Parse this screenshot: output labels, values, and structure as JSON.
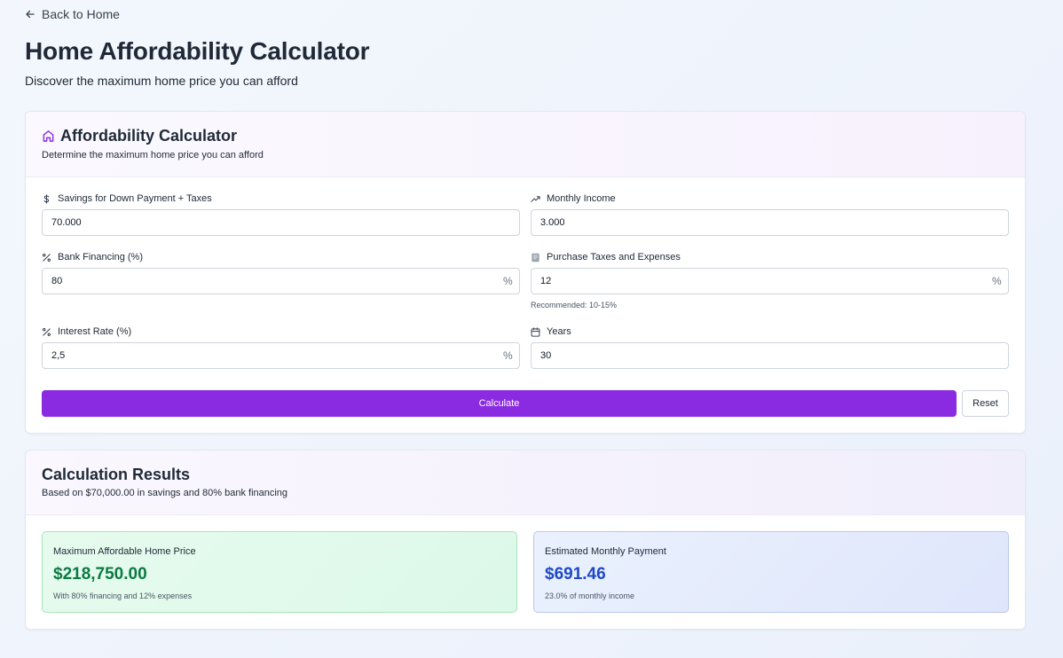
{
  "nav": {
    "back_label": "Back to Home"
  },
  "header": {
    "title": "Home Affordability Calculator",
    "subtitle": "Discover the maximum home price you can afford"
  },
  "calculator": {
    "title": "Affordability Calculator",
    "description": "Determine the maximum home price you can afford",
    "fields": {
      "savings": {
        "label": "Savings for Down Payment + Taxes",
        "value": "70.000",
        "icon": "dollar-icon"
      },
      "income": {
        "label": "Monthly Income",
        "value": "3.000",
        "icon": "trending-up-icon"
      },
      "financing": {
        "label": "Bank Financing (%)",
        "value": "80",
        "suffix": "%",
        "icon": "percent-icon"
      },
      "taxes": {
        "label": "Purchase Taxes and Expenses",
        "value": "12",
        "suffix": "%",
        "hint": "Recommended: 10-15%",
        "icon": "receipt-icon"
      },
      "interest": {
        "label": "Interest Rate (%)",
        "value": "2,5",
        "suffix": "%",
        "icon": "percent-icon"
      },
      "years": {
        "label": "Years",
        "value": "30",
        "icon": "calendar-icon"
      }
    },
    "calculate_label": "Calculate",
    "reset_label": "Reset"
  },
  "results": {
    "title": "Calculation Results",
    "description": "Based on $70,000.00 in savings and 80% bank financing",
    "price": {
      "label": "Maximum Affordable Home Price",
      "value": "$218,750.00",
      "note": "With 80% financing and 12% expenses"
    },
    "payment": {
      "label": "Estimated Monthly Payment",
      "value": "$691.46",
      "note": "23.0% of monthly income"
    }
  },
  "colors": {
    "accent": "#8a2be2",
    "price_value": "#0b7a43",
    "payment_value": "#1f48c7"
  }
}
